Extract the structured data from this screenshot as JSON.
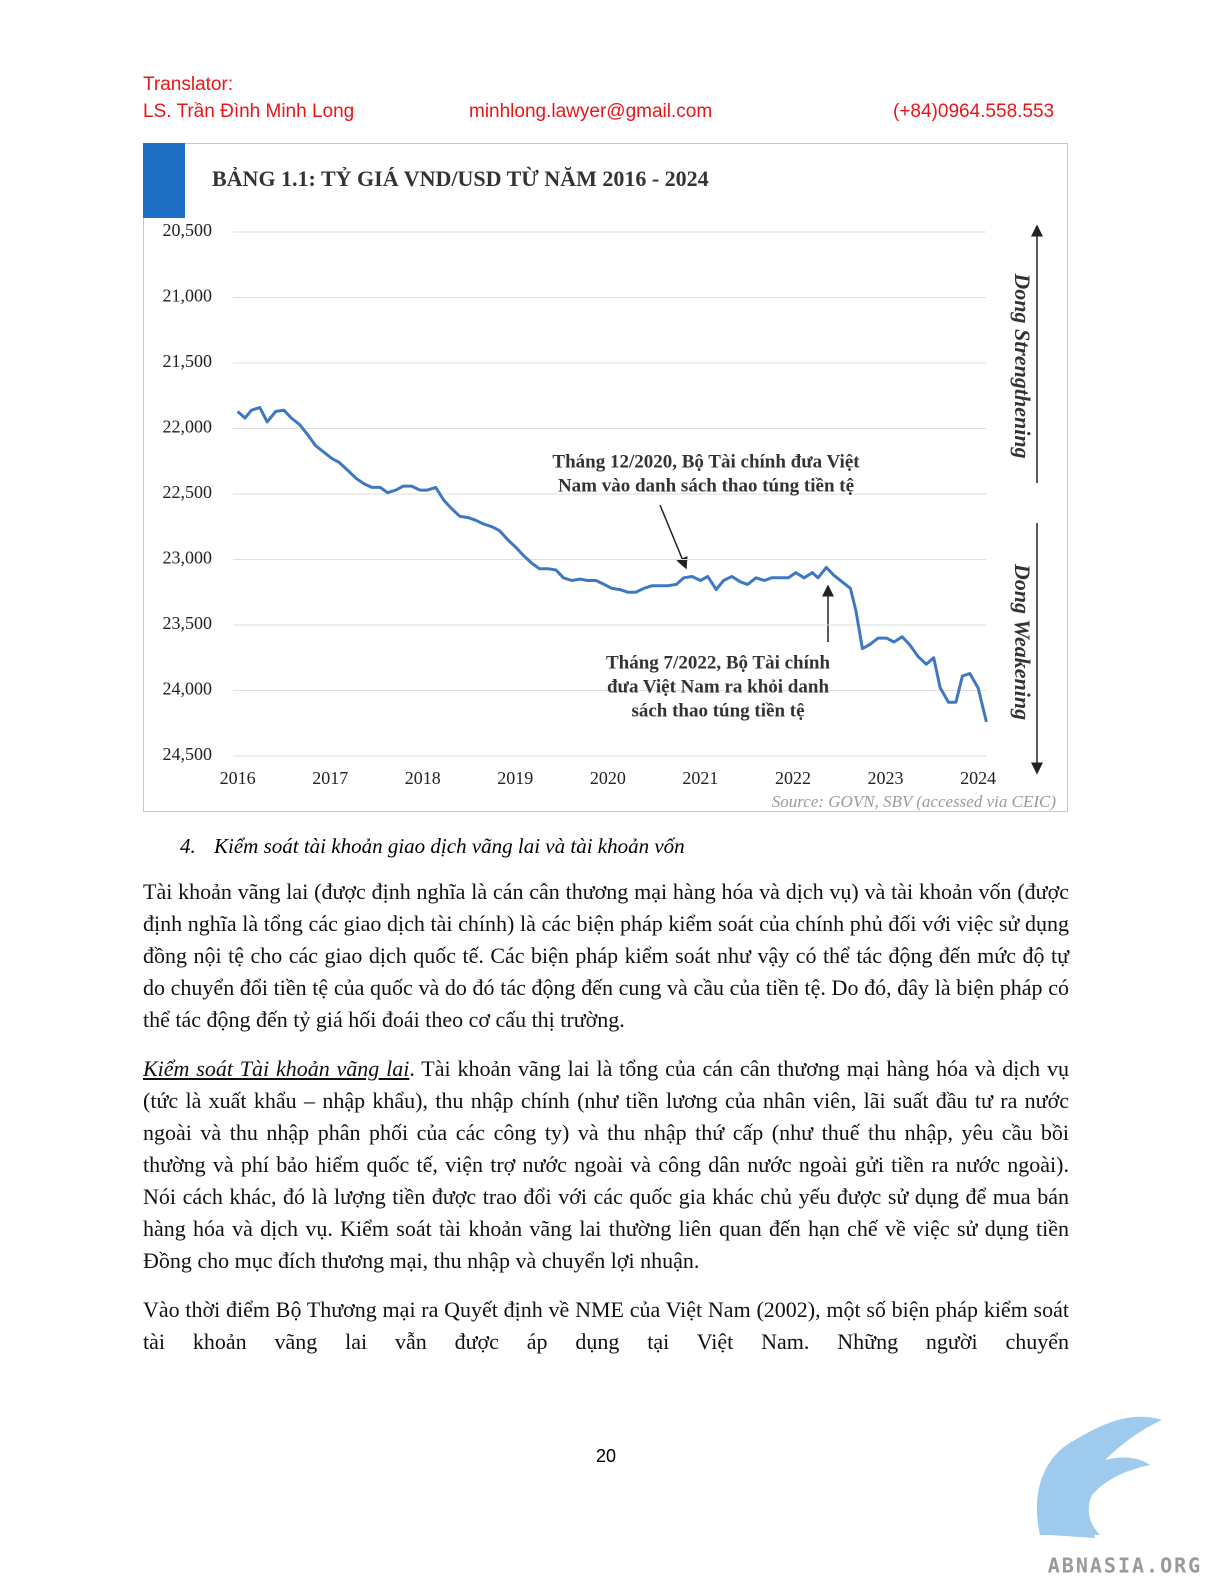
{
  "header": {
    "label": "Translator:",
    "name": "LS. Trần Đình Minh Long",
    "email": "minhlong.lawyer@gmail.com",
    "phone": "(+84)0964.558.553"
  },
  "chart_data": {
    "type": "line",
    "title": "BẢNG 1.1: TỶ GIÁ VND/USD TỪ NĂM 2016 - 2024",
    "x": [
      2016.0,
      2016.08,
      2016.15,
      2016.24,
      2016.32,
      2016.41,
      2016.5,
      2016.58,
      2016.67,
      2016.76,
      2016.84,
      2016.93,
      2017.02,
      2017.1,
      2017.19,
      2017.28,
      2017.36,
      2017.45,
      2017.54,
      2017.62,
      2017.71,
      2017.79,
      2017.88,
      2017.97,
      2018.05,
      2018.14,
      2018.23,
      2018.31,
      2018.4,
      2018.49,
      2018.57,
      2018.66,
      2018.75,
      2018.83,
      2018.92,
      2019.01,
      2019.09,
      2019.18,
      2019.26,
      2019.35,
      2019.44,
      2019.52,
      2019.61,
      2019.7,
      2019.78,
      2019.87,
      2019.96,
      2020.04,
      2020.13,
      2020.22,
      2020.3,
      2020.39,
      2020.48,
      2020.56,
      2020.65,
      2020.74,
      2020.82,
      2020.91,
      2021.0,
      2021.08,
      2021.17,
      2021.25,
      2021.34,
      2021.43,
      2021.51,
      2021.6,
      2021.69,
      2021.77,
      2021.86,
      2021.95,
      2022.03,
      2022.12,
      2022.21,
      2022.27,
      2022.36,
      2022.44,
      2022.53,
      2022.62,
      2022.68,
      2022.75,
      2022.83,
      2022.92,
      2023.01,
      2023.09,
      2023.18,
      2023.26,
      2023.35,
      2023.44,
      2023.52,
      2023.59,
      2023.68,
      2023.76,
      2023.83,
      2023.91,
      2024.0,
      2024.09
    ],
    "series": [
      {
        "color": "#3d78c0",
        "values": [
          21870,
          21920,
          21860,
          21840,
          21950,
          21870,
          21860,
          21920,
          21970,
          22050,
          22130,
          22180,
          22230,
          22260,
          22320,
          22380,
          22420,
          22450,
          22450,
          22490,
          22470,
          22440,
          22440,
          22470,
          22470,
          22450,
          22550,
          22610,
          22670,
          22680,
          22700,
          22730,
          22750,
          22780,
          22850,
          22910,
          22970,
          23030,
          23070,
          23070,
          23080,
          23140,
          23160,
          23150,
          23160,
          23160,
          23190,
          23220,
          23230,
          23250,
          23250,
          23220,
          23200,
          23200,
          23200,
          23190,
          23140,
          23130,
          23160,
          23130,
          23230,
          23160,
          23130,
          23170,
          23190,
          23140,
          23160,
          23140,
          23140,
          23140,
          23100,
          23140,
          23100,
          23140,
          23060,
          23120,
          23170,
          23220,
          23390,
          23680,
          23650,
          23600,
          23600,
          23630,
          23590,
          23650,
          23740,
          23800,
          23750,
          23980,
          24090,
          24090,
          23890,
          23870,
          23980,
          24240
        ]
      }
    ],
    "xlim": [
      2015.95,
      2024.15
    ],
    "xticks": [
      2016,
      2017,
      2018,
      2019,
      2020,
      2021,
      2022,
      2023,
      2024
    ],
    "ylim": [
      20500,
      24500
    ],
    "y_inverted": true,
    "yticks": [
      {
        "value": 20500,
        "label": "20,500"
      },
      {
        "value": 21000,
        "label": "21,000"
      },
      {
        "value": 21500,
        "label": "21,500"
      },
      {
        "value": 22000,
        "label": "22,000"
      },
      {
        "value": 22500,
        "label": "22,500"
      },
      {
        "value": 23000,
        "label": "23,000"
      },
      {
        "value": 23500,
        "label": "23,500"
      },
      {
        "value": 24000,
        "label": "24,000"
      },
      {
        "value": 24500,
        "label": "24,500"
      }
    ],
    "grid": true,
    "annotations": [
      {
        "lines": [
          "Tháng 12/2020, Bộ Tài chính đưa Việt",
          "Nam vào danh sách thao túng tiền tệ"
        ]
      },
      {
        "lines": [
          "Tháng 7/2022, Bộ Tài chính",
          "đưa Việt Nam ra khỏi danh",
          "sách thao túng tiền tệ"
        ]
      }
    ],
    "side_labels": [
      "Dong Strengthening",
      "Dong Weakening"
    ],
    "source": "Source: GOVN, SBV (accessed via CEIC)"
  },
  "section_heading": {
    "number": "4.",
    "text": "Kiểm soát tài khoản giao dịch vãng lai và tài khoản vốn"
  },
  "paragraphs": [
    {
      "text": "Tài khoản vãng lai (được định nghĩa là cán cân thương mại hàng hóa và dịch vụ) và tài khoản vốn (được định nghĩa là tổng các giao dịch tài chính) là các biện pháp kiểm soát của chính phủ đối với việc sử dụng đồng nội tệ cho các giao dịch quốc tế. Các biện pháp kiểm soát như vậy có thể tác động đến mức độ tự do chuyển đổi tiền tệ của quốc và do đó tác động đến cung và cầu của tiền tệ. Do đó, đây là biện pháp có thể tác động đến tỷ giá hối đoái theo cơ cấu thị trường."
    },
    {
      "lead": "Kiểm soát Tài khoản vãng lai",
      "text": ". Tài khoản vãng lai là tổng của cán cân thương mại hàng hóa và dịch vụ (tức là xuất khẩu – nhập khẩu), thu nhập chính (như tiền lương của nhân viên, lãi suất đầu tư ra nước ngoài và thu nhập phân phối của các công ty) và thu nhập thứ cấp (như thuế thu nhập, yêu cầu bồi thường và phí bảo hiểm quốc tế, viện trợ nước ngoài và công dân nước ngoài gửi tiền ra nước ngoài). Nói cách khác, đó là lượng tiền được trao đổi với các quốc gia khác chủ yếu được sử dụng để mua bán hàng hóa và dịch vụ. Kiểm soát tài khoản vãng lai thường liên quan đến hạn chế về việc sử dụng tiền Đồng cho mục đích thương mại, thu nhập và chuyển lợi nhuận."
    },
    {
      "text": "Vào thời điểm Bộ Thương mại ra Quyết định về NME của Việt Nam (2002), một số biện pháp kiểm soát tài khoản vãng lai vẫn được áp dụng tại Việt Nam. Những người chuyển"
    }
  ],
  "page_number": "20",
  "watermark": "ABNASIA.ORG"
}
